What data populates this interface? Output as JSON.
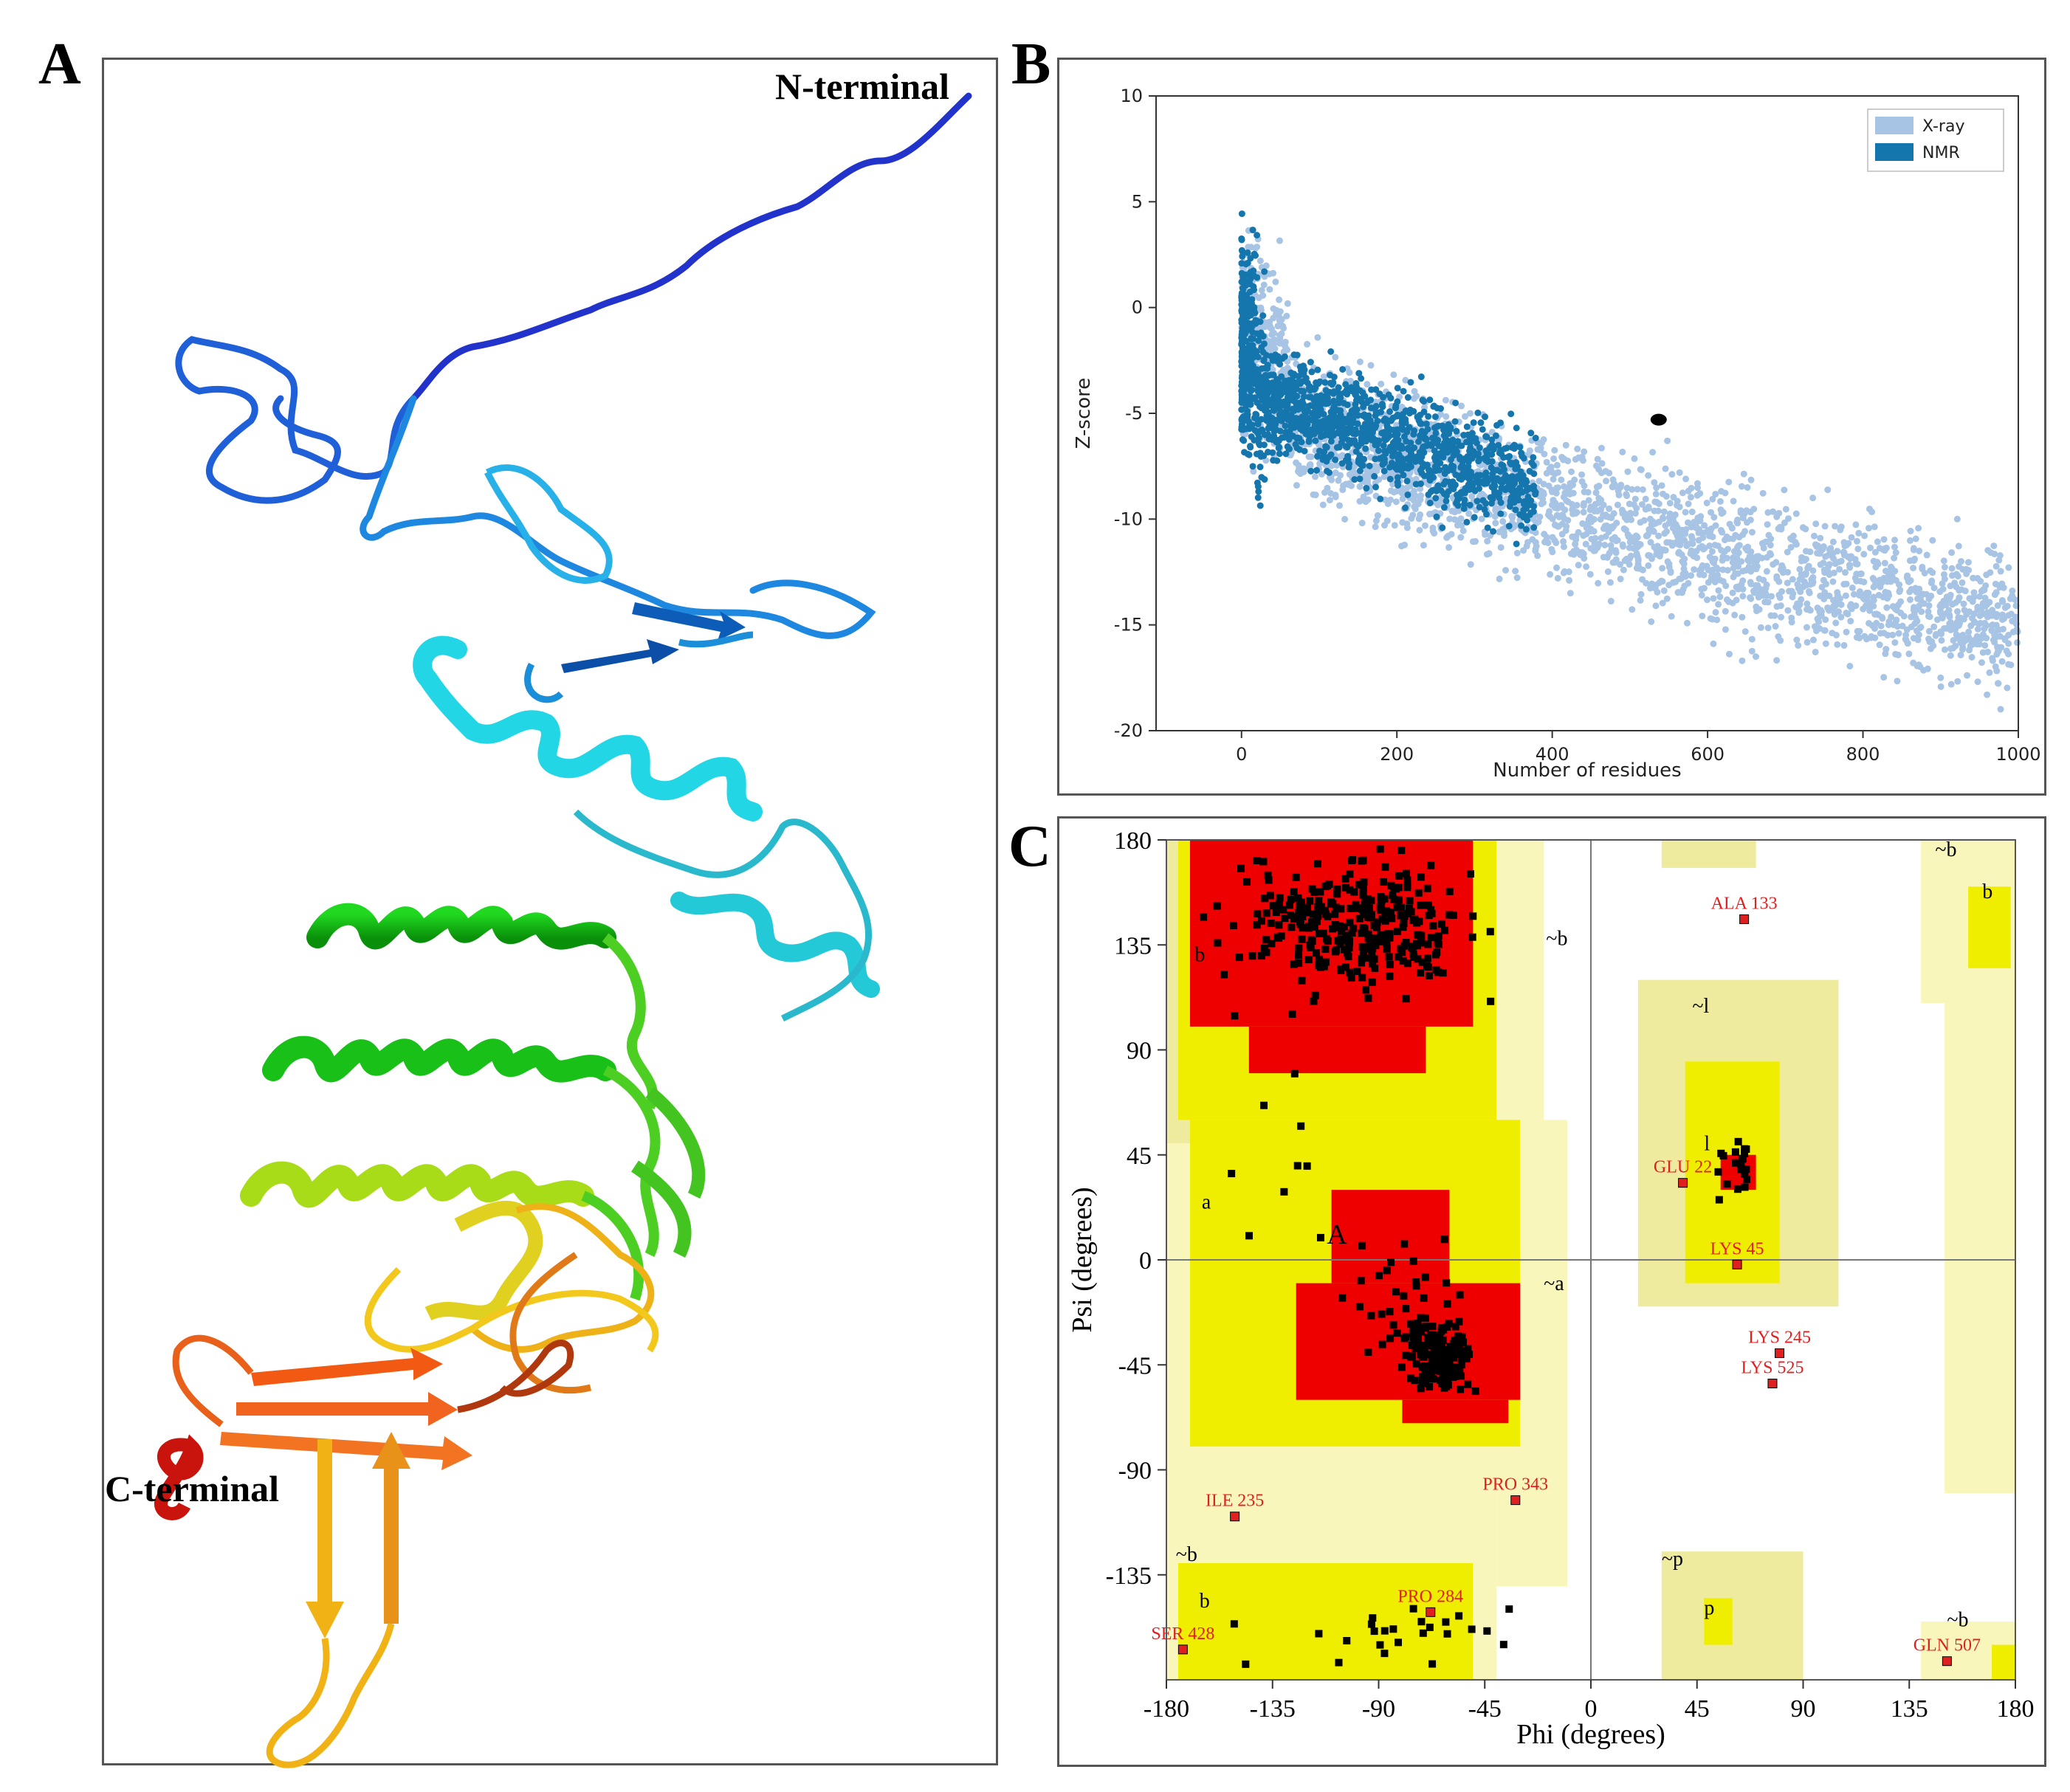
{
  "panels": {
    "a": {
      "letter": "A",
      "n_label": "N-terminal",
      "c_label": "C-terminal"
    },
    "b": {
      "letter": "B"
    },
    "c": {
      "letter": "C"
    }
  },
  "chart_data": [
    {
      "panel": "B",
      "type": "scatter",
      "xlabel": "Number of residues",
      "ylabel": "Z-score",
      "xlim": [
        -110,
        1000
      ],
      "ylim": [
        -20,
        10
      ],
      "xticks": [
        "0",
        "200",
        "400",
        "600",
        "800",
        "1000"
      ],
      "yticks": [
        "10",
        "5",
        "0",
        "-5",
        "-10",
        "-15",
        "-20"
      ],
      "legend_position": "top-right",
      "series": [
        {
          "name": "X-ray",
          "color": "#a8c4e4"
        },
        {
          "name": "NMR",
          "color": "#1576ad"
        }
      ],
      "highlight_point": {
        "x": 537,
        "y": -5.3,
        "color": "#000000"
      }
    },
    {
      "panel": "C",
      "type": "scatter",
      "xlabel": "Phi (degrees)",
      "ylabel": "Psi (degrees)",
      "xlim": [
        -180,
        180
      ],
      "ylim": [
        -180,
        180
      ],
      "xticks": [
        "-180",
        "-135",
        "-90",
        "-45",
        "0",
        "45",
        "90",
        "135",
        "180"
      ],
      "yticks": [
        "180",
        "135",
        "90",
        "45",
        "0",
        "-45",
        "-90",
        "-135"
      ],
      "region_labels": [
        {
          "text": "b",
          "x": -168,
          "y": 128
        },
        {
          "text": "a",
          "x": -165,
          "y": 22
        },
        {
          "text": "A",
          "x": -112,
          "y": 7
        },
        {
          "text": "~b",
          "x": -19,
          "y": 135
        },
        {
          "text": "~a",
          "x": -20,
          "y": -13
        },
        {
          "text": "~l",
          "x": 43,
          "y": 106
        },
        {
          "text": "l",
          "x": 48,
          "y": 47
        },
        {
          "text": "~b",
          "x": 146,
          "y": 173
        },
        {
          "text": "b",
          "x": 166,
          "y": 155
        },
        {
          "text": "~b",
          "x": -176,
          "y": -129
        },
        {
          "text": "b",
          "x": -166,
          "y": -149
        },
        {
          "text": "~p",
          "x": 30,
          "y": -131
        },
        {
          "text": "p",
          "x": 48,
          "y": -152
        },
        {
          "text": "~b",
          "x": 151,
          "y": -157
        }
      ],
      "outliers": [
        {
          "label": "ALA 133",
          "x": 65,
          "y": 146
        },
        {
          "label": "GLU 22",
          "x": 39,
          "y": 33
        },
        {
          "label": "LYS 45",
          "x": 62,
          "y": -2
        },
        {
          "label": "LYS 245",
          "x": 80,
          "y": -40
        },
        {
          "label": "LYS 525",
          "x": 77,
          "y": -53
        },
        {
          "label": "ILE 235",
          "x": -151,
          "y": -110
        },
        {
          "label": "PRO 343",
          "x": -32,
          "y": -103
        },
        {
          "label": "PRO 284",
          "x": -68,
          "y": -151
        },
        {
          "label": "SER 428",
          "x": -173,
          "y": -167
        },
        {
          "label": "GLN 507",
          "x": 151,
          "y": -172
        }
      ]
    }
  ]
}
